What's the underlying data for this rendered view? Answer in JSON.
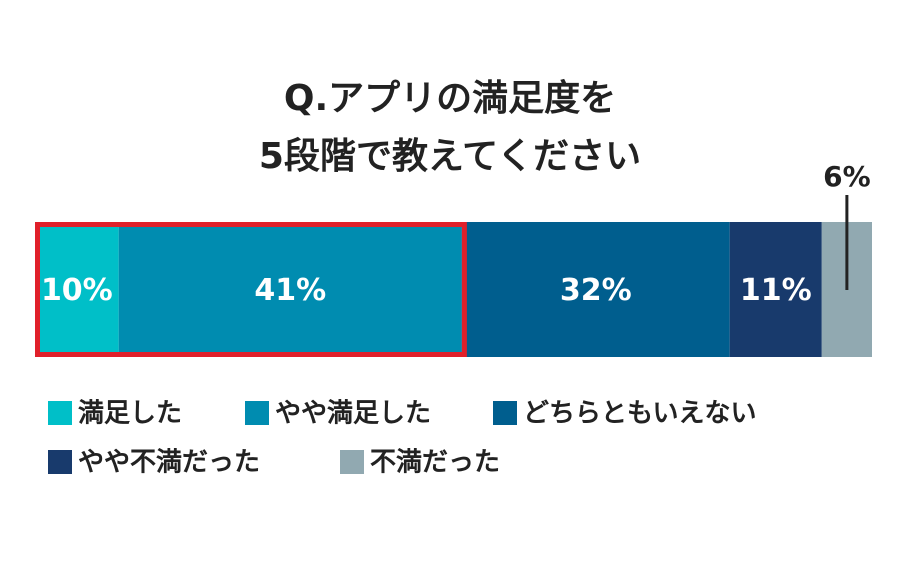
{
  "chart_data": {
    "type": "bar",
    "orientation": "horizontal",
    "stacked": true,
    "title_lines": [
      "Q.アプリの満足度を",
      "5段階で教えてください"
    ],
    "xlim": [
      0,
      100
    ],
    "series": [
      {
        "name": "満足した",
        "color": "#00bfc8",
        "values": [
          10
        ],
        "value_labels": [
          "10%"
        ]
      },
      {
        "name": "やや満足した",
        "color": "#008cb0",
        "values": [
          41
        ],
        "value_labels": [
          "41%"
        ]
      },
      {
        "name": "どちらともいえない",
        "color": "#005e8e",
        "values": [
          32
        ],
        "value_labels": [
          "32%"
        ]
      },
      {
        "name": "やや不満だった",
        "color": "#183a6c",
        "values": [
          11
        ],
        "value_labels": [
          "11%"
        ]
      },
      {
        "name": "不満だった",
        "color": "#91a9b1",
        "values": [
          6
        ],
        "value_labels": [
          "6%"
        ]
      }
    ],
    "highlight_series": [
      0,
      1
    ],
    "highlight_color": "#e0202a"
  }
}
